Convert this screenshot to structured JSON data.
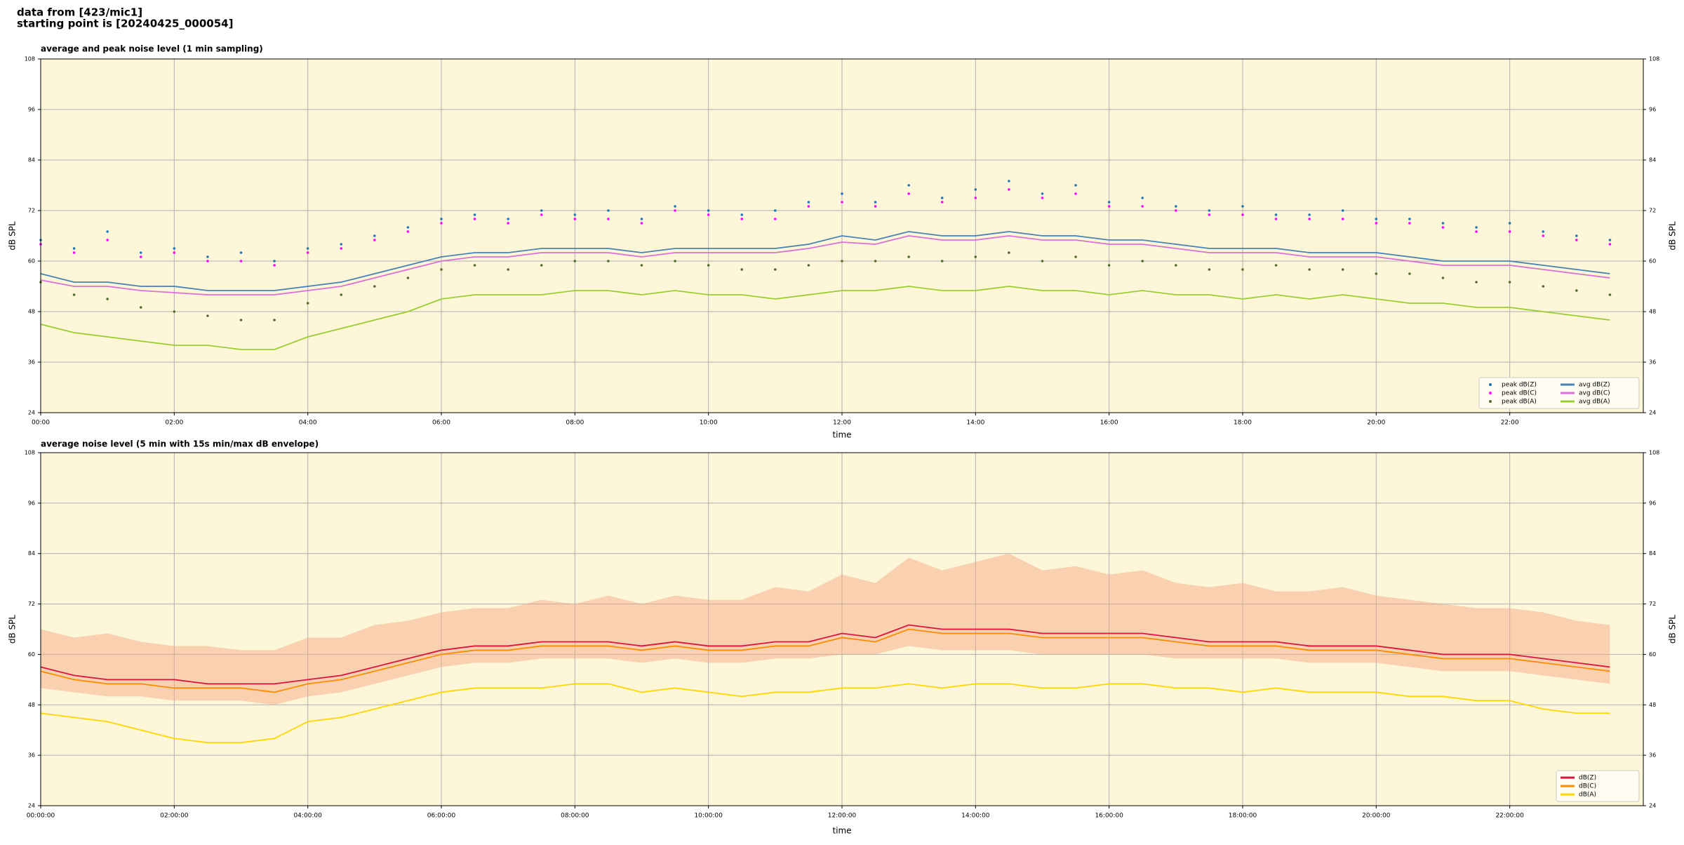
{
  "header": {
    "lines": [
      "data from [423/mic1]",
      "starting point is [20240425_000054]"
    ]
  },
  "chart_data": [
    {
      "type": "line",
      "title": "average and peak noise level (1 min sampling)",
      "xlabel": "time",
      "ylabel": "dB SPL",
      "xlim": [
        0,
        24
      ],
      "ylim": [
        24,
        108
      ],
      "yticks": [
        24,
        36,
        48,
        60,
        72,
        84,
        96,
        108
      ],
      "xticks": [
        {
          "value": 0,
          "label": "00:00"
        },
        {
          "value": 2,
          "label": "02:00"
        },
        {
          "value": 4,
          "label": "04:00"
        },
        {
          "value": 6,
          "label": "06:00"
        },
        {
          "value": 8,
          "label": "08:00"
        },
        {
          "value": 10,
          "label": "10:00"
        },
        {
          "value": 12,
          "label": "12:00"
        },
        {
          "value": 14,
          "label": "14:00"
        },
        {
          "value": 16,
          "label": "16:00"
        },
        {
          "value": 18,
          "label": "18:00"
        },
        {
          "value": 20,
          "label": "20:00"
        },
        {
          "value": 22,
          "label": "22:00"
        }
      ],
      "grid": true,
      "legend": "lower right",
      "background": "#fdf6d8",
      "x": [
        0,
        0.5,
        1,
        1.5,
        2,
        2.5,
        3,
        3.5,
        4,
        4.5,
        5,
        5.5,
        6,
        6.5,
        7,
        7.5,
        8,
        8.5,
        9,
        9.5,
        10,
        10.5,
        11,
        11.5,
        12,
        12.5,
        13,
        13.5,
        14,
        14.5,
        15,
        15.5,
        16,
        16.5,
        17,
        17.5,
        18,
        18.5,
        19,
        19.5,
        20,
        20.5,
        21,
        21.5,
        22,
        22.5,
        23,
        23.5
      ],
      "series": [
        {
          "name": "peak dB(Z)",
          "type": "scatter",
          "color": "#1f77b4",
          "values": [
            65,
            63,
            67,
            62,
            63,
            61,
            62,
            60,
            63,
            64,
            66,
            68,
            70,
            71,
            70,
            72,
            71,
            72,
            70,
            73,
            72,
            71,
            72,
            74,
            76,
            74,
            78,
            75,
            77,
            79,
            76,
            78,
            74,
            75,
            73,
            72,
            73,
            71,
            71,
            72,
            70,
            70,
            69,
            68,
            69,
            67,
            66,
            65
          ]
        },
        {
          "name": "peak dB(C)",
          "type": "scatter",
          "color": "#ff00ff",
          "values": [
            64,
            62,
            65,
            61,
            62,
            60,
            60,
            59,
            62,
            63,
            65,
            67,
            69,
            70,
            69,
            71,
            70,
            70,
            69,
            72,
            71,
            70,
            70,
            73,
            74,
            73,
            76,
            74,
            75,
            77,
            75,
            76,
            73,
            73,
            72,
            71,
            71,
            70,
            70,
            70,
            69,
            69,
            68,
            67,
            67,
            66,
            65,
            64
          ]
        },
        {
          "name": "peak dB(A)",
          "type": "scatter",
          "color": "#556b2f",
          "values": [
            55,
            52,
            51,
            49,
            48,
            47,
            46,
            46,
            50,
            52,
            54,
            56,
            58,
            59,
            58,
            59,
            60,
            60,
            59,
            60,
            59,
            58,
            58,
            59,
            60,
            60,
            61,
            60,
            61,
            62,
            60,
            61,
            59,
            60,
            59,
            58,
            58,
            59,
            58,
            58,
            57,
            57,
            56,
            55,
            55,
            54,
            53,
            52
          ]
        },
        {
          "name": "avg dB(Z)",
          "type": "line",
          "color": "#4682b4",
          "values": [
            57,
            55,
            55,
            54,
            54,
            53,
            53,
            53,
            54,
            55,
            57,
            59,
            61,
            62,
            62,
            63,
            63,
            63,
            62,
            63,
            63,
            63,
            63,
            64,
            66,
            65,
            67,
            66,
            66,
            67,
            66,
            66,
            65,
            65,
            64,
            63,
            63,
            63,
            62,
            62,
            62,
            61,
            60,
            60,
            60,
            59,
            58,
            57
          ]
        },
        {
          "name": "avg dB(C)",
          "type": "line",
          "color": "#da70d6",
          "values": [
            55.5,
            54,
            54,
            53,
            52.5,
            52,
            52,
            52,
            53,
            54,
            56,
            58,
            60,
            61,
            61,
            62,
            62,
            62,
            61,
            62,
            62,
            62,
            62,
            63,
            64.5,
            64,
            66,
            65,
            65,
            66,
            65,
            65,
            64,
            64,
            63,
            62,
            62,
            62,
            61,
            61,
            61,
            60,
            59,
            59,
            59,
            58,
            57,
            56
          ]
        },
        {
          "name": "avg dB(A)",
          "type": "line",
          "color": "#9acd32",
          "values": [
            45,
            43,
            42,
            41,
            40,
            40,
            39,
            39,
            42,
            44,
            46,
            48,
            51,
            52,
            52,
            52,
            53,
            53,
            52,
            53,
            52,
            52,
            51,
            52,
            53,
            53,
            54,
            53,
            53,
            54,
            53,
            53,
            52,
            53,
            52,
            52,
            51,
            52,
            51,
            52,
            51,
            50,
            50,
            49,
            49,
            48,
            47,
            46
          ]
        }
      ]
    },
    {
      "type": "line",
      "title": "average noise level (5 min with 15s min/max dB envelope)",
      "xlabel": "time",
      "ylabel": "dB SPL",
      "xlim": [
        0,
        24
      ],
      "ylim": [
        24,
        108
      ],
      "yticks": [
        24,
        36,
        48,
        60,
        72,
        84,
        96,
        108
      ],
      "xticks": [
        {
          "value": 0,
          "label": "00:00:00"
        },
        {
          "value": 2,
          "label": "02:00:00"
        },
        {
          "value": 4,
          "label": "04:00:00"
        },
        {
          "value": 6,
          "label": "06:00:00"
        },
        {
          "value": 8,
          "label": "08:00:00"
        },
        {
          "value": 10,
          "label": "10:00:00"
        },
        {
          "value": 12,
          "label": "12:00:00"
        },
        {
          "value": 14,
          "label": "14:00:00"
        },
        {
          "value": 16,
          "label": "16:00:00"
        },
        {
          "value": 18,
          "label": "18:00:00"
        },
        {
          "value": 20,
          "label": "20:00:00"
        },
        {
          "value": 22,
          "label": "22:00:00"
        }
      ],
      "grid": true,
      "legend": "lower right",
      "background": "#fdf6d8",
      "x": [
        0,
        0.5,
        1,
        1.5,
        2,
        2.5,
        3,
        3.5,
        4,
        4.5,
        5,
        5.5,
        6,
        6.5,
        7,
        7.5,
        8,
        8.5,
        9,
        9.5,
        10,
        10.5,
        11,
        11.5,
        12,
        12.5,
        13,
        13.5,
        14,
        14.5,
        15,
        15.5,
        16,
        16.5,
        17,
        17.5,
        18,
        18.5,
        19,
        19.5,
        20,
        20.5,
        21,
        21.5,
        22,
        22.5,
        23,
        23.5
      ],
      "envelope": {
        "color": "#f4a582",
        "lower": [
          52,
          51,
          50,
          50,
          49,
          49,
          49,
          48,
          50,
          51,
          53,
          55,
          57,
          58,
          58,
          59,
          59,
          59,
          58,
          59,
          58,
          58,
          59,
          59,
          60,
          60,
          62,
          61,
          61,
          61,
          60,
          60,
          60,
          60,
          59,
          59,
          59,
          59,
          58,
          58,
          58,
          57,
          56,
          56,
          56,
          55,
          54,
          53
        ],
        "upper": [
          66,
          64,
          65,
          63,
          62,
          62,
          61,
          61,
          64,
          64,
          67,
          68,
          70,
          71,
          71,
          73,
          72,
          74,
          72,
          74,
          73,
          73,
          76,
          75,
          79,
          77,
          83,
          80,
          82,
          84,
          80,
          81,
          79,
          80,
          77,
          76,
          77,
          75,
          75,
          76,
          74,
          73,
          72,
          71,
          71,
          70,
          68,
          67
        ]
      },
      "series": [
        {
          "name": "dB(Z)",
          "type": "line",
          "color": "#dc143c",
          "values": [
            57,
            55,
            54,
            54,
            54,
            53,
            53,
            53,
            54,
            55,
            57,
            59,
            61,
            62,
            62,
            63,
            63,
            63,
            62,
            63,
            62,
            62,
            63,
            63,
            65,
            64,
            67,
            66,
            66,
            66,
            65,
            65,
            65,
            65,
            64,
            63,
            63,
            63,
            62,
            62,
            62,
            61,
            60,
            60,
            60,
            59,
            58,
            57
          ]
        },
        {
          "name": "dB(C)",
          "type": "line",
          "color": "#ff8c00",
          "values": [
            56,
            54,
            53,
            53,
            52,
            52,
            52,
            51,
            53,
            54,
            56,
            58,
            60,
            61,
            61,
            62,
            62,
            62,
            61,
            62,
            61,
            61,
            62,
            62,
            64,
            63,
            66,
            65,
            65,
            65,
            64,
            64,
            64,
            64,
            63,
            62,
            62,
            62,
            61,
            61,
            61,
            60,
            59,
            59,
            59,
            58,
            57,
            56
          ]
        },
        {
          "name": "dB(A)",
          "type": "line",
          "color": "#ffd700",
          "values": [
            46,
            45,
            44,
            42,
            40,
            39,
            39,
            40,
            44,
            45,
            47,
            49,
            51,
            52,
            52,
            52,
            53,
            53,
            51,
            52,
            51,
            50,
            51,
            51,
            52,
            52,
            53,
            52,
            53,
            53,
            52,
            52,
            53,
            53,
            52,
            52,
            51,
            52,
            51,
            51,
            51,
            50,
            50,
            49,
            49,
            47,
            46,
            46
          ]
        }
      ]
    }
  ]
}
